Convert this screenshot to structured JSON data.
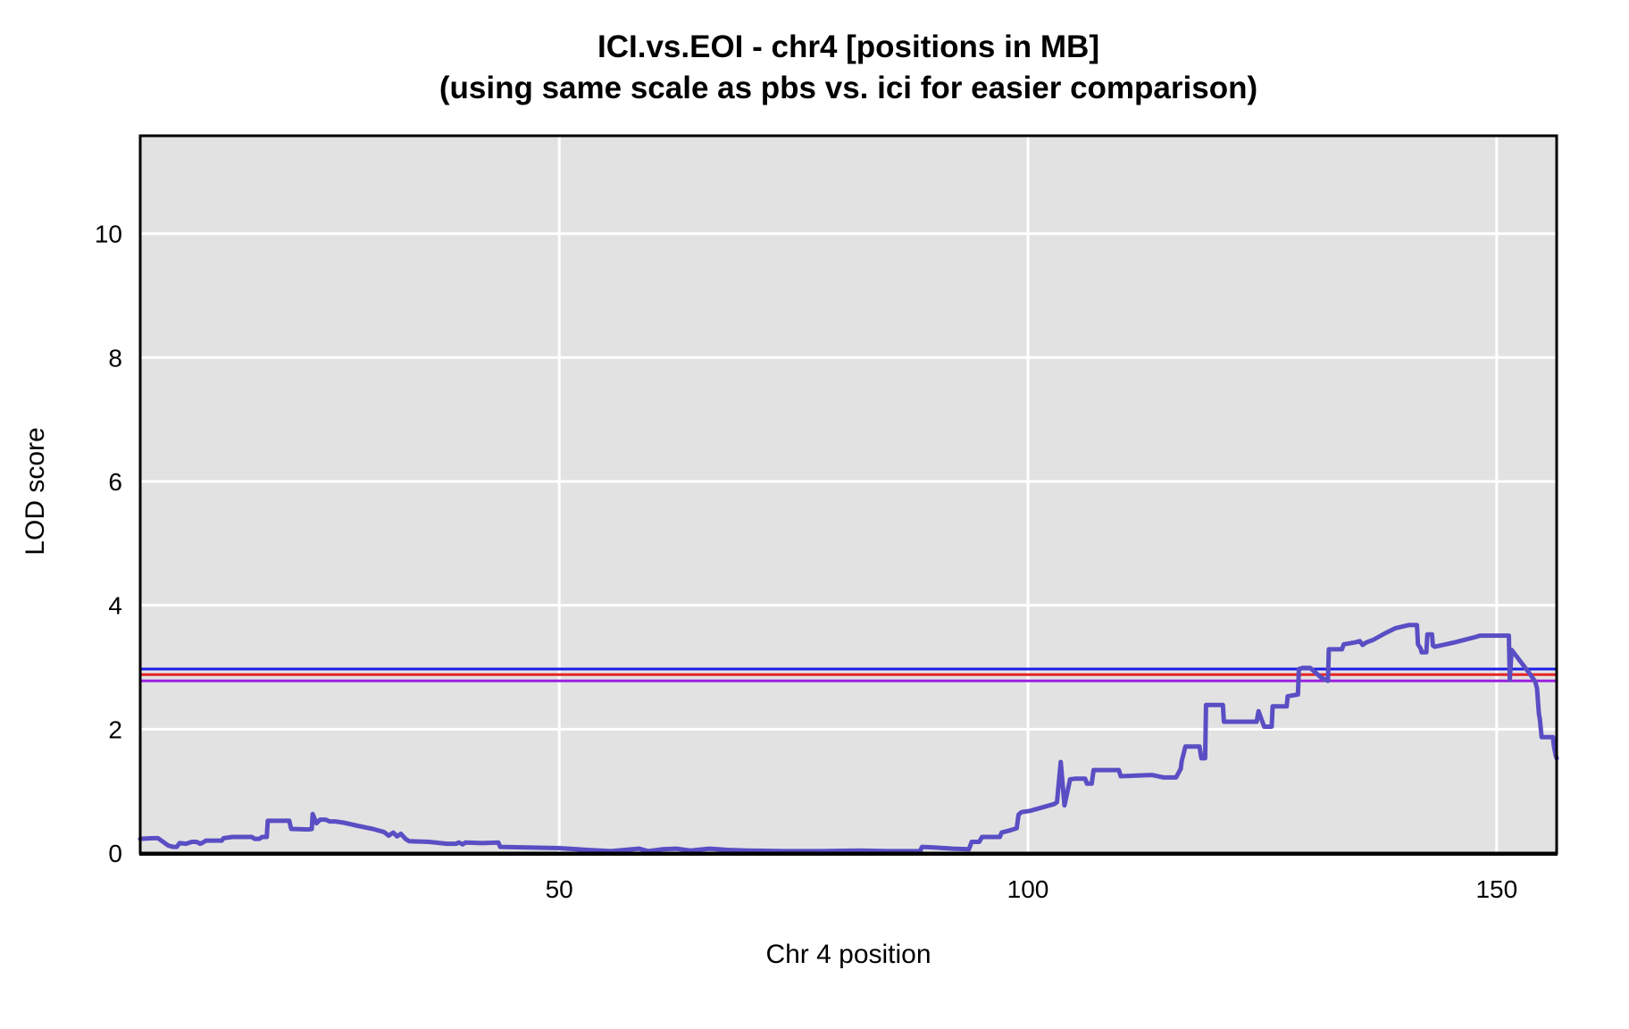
{
  "chart_data": {
    "type": "line",
    "title": "ICI.vs.EOI - chr4 [positions in MB]",
    "subtitle": "(using same scale as pbs vs. ici for easier comparison)",
    "xlabel": "Chr 4 position",
    "ylabel": "LOD score",
    "xlim": [
      5.3,
      156.4
    ],
    "ylim": [
      0,
      11.58
    ],
    "xticks": [
      50,
      100,
      150
    ],
    "yticks": [
      0,
      2,
      4,
      6,
      8,
      10
    ],
    "grid": true,
    "legend_position": "none",
    "panel_bg": "#e2e2e2",
    "grid_color": "#ffffff",
    "border_color": "#000000",
    "text_color": "#000000",
    "thresholds": [
      {
        "name": "blue-threshold",
        "value": 2.97,
        "color": "#1c1ce6"
      },
      {
        "name": "red-threshold",
        "value": 2.88,
        "color": "#e62424"
      },
      {
        "name": "purple-threshold",
        "value": 2.78,
        "color": "#9a22dd"
      }
    ],
    "series": [
      {
        "name": "LOD",
        "color": "#5a4ec4",
        "points": [
          [
            5.3,
            0.23
          ],
          [
            6.6,
            0.24
          ],
          [
            7.2,
            0.24
          ],
          [
            8.3,
            0.12
          ],
          [
            8.8,
            0.1
          ],
          [
            9.2,
            0.1
          ],
          [
            9.5,
            0.16
          ],
          [
            10.2,
            0.15
          ],
          [
            10.8,
            0.18
          ],
          [
            11.3,
            0.18
          ],
          [
            11.7,
            0.15
          ],
          [
            12.0,
            0.17
          ],
          [
            12.3,
            0.2
          ],
          [
            14.0,
            0.2
          ],
          [
            14.2,
            0.24
          ],
          [
            15.1,
            0.26
          ],
          [
            17.2,
            0.26
          ],
          [
            17.5,
            0.23
          ],
          [
            18.0,
            0.23
          ],
          [
            18.3,
            0.26
          ],
          [
            18.8,
            0.26
          ],
          [
            18.9,
            0.52
          ],
          [
            21.2,
            0.52
          ],
          [
            21.4,
            0.39
          ],
          [
            23.3,
            0.38
          ],
          [
            23.6,
            0.39
          ],
          [
            23.7,
            0.63
          ],
          [
            24.1,
            0.48
          ],
          [
            24.5,
            0.54
          ],
          [
            25.1,
            0.54
          ],
          [
            25.5,
            0.51
          ],
          [
            26.1,
            0.51
          ],
          [
            27.0,
            0.49
          ],
          [
            28.5,
            0.44
          ],
          [
            30.1,
            0.39
          ],
          [
            31.3,
            0.34
          ],
          [
            31.8,
            0.28
          ],
          [
            32.3,
            0.33
          ],
          [
            32.7,
            0.27
          ],
          [
            33.1,
            0.31
          ],
          [
            33.6,
            0.23
          ],
          [
            34.0,
            0.19
          ],
          [
            36.1,
            0.18
          ],
          [
            38.0,
            0.15
          ],
          [
            39.0,
            0.15
          ],
          [
            39.3,
            0.17
          ],
          [
            39.7,
            0.14
          ],
          [
            40.0,
            0.17
          ],
          [
            41.8,
            0.16
          ],
          [
            43.5,
            0.17
          ],
          [
            43.7,
            0.1
          ],
          [
            46.5,
            0.09
          ],
          [
            50.0,
            0.08
          ],
          [
            53.0,
            0.05
          ],
          [
            55.5,
            0.03
          ],
          [
            57.0,
            0.05
          ],
          [
            58.5,
            0.07
          ],
          [
            59.5,
            0.03
          ],
          [
            61.0,
            0.06
          ],
          [
            62.5,
            0.07
          ],
          [
            64.0,
            0.04
          ],
          [
            66.0,
            0.07
          ],
          [
            68.0,
            0.05
          ],
          [
            70.0,
            0.04
          ],
          [
            74.0,
            0.03
          ],
          [
            78.0,
            0.03
          ],
          [
            82.0,
            0.04
          ],
          [
            85.0,
            0.03
          ],
          [
            88.5,
            0.03
          ],
          [
            88.7,
            0.1
          ],
          [
            90.0,
            0.09
          ],
          [
            92.0,
            0.07
          ],
          [
            93.7,
            0.06
          ],
          [
            94.0,
            0.18
          ],
          [
            94.8,
            0.18
          ],
          [
            95.1,
            0.26
          ],
          [
            97.0,
            0.26
          ],
          [
            97.2,
            0.33
          ],
          [
            98.2,
            0.37
          ],
          [
            98.8,
            0.4
          ],
          [
            99.0,
            0.62
          ],
          [
            99.3,
            0.66
          ],
          [
            100.2,
            0.68
          ],
          [
            102.8,
            0.79
          ],
          [
            103.1,
            0.82
          ],
          [
            103.5,
            1.47
          ],
          [
            103.9,
            0.77
          ],
          [
            104.5,
            1.19
          ],
          [
            105.0,
            1.2
          ],
          [
            106.1,
            1.2
          ],
          [
            106.3,
            1.12
          ],
          [
            106.8,
            1.12
          ],
          [
            107.0,
            1.34
          ],
          [
            109.7,
            1.34
          ],
          [
            109.9,
            1.24
          ],
          [
            113.2,
            1.26
          ],
          [
            114.5,
            1.22
          ],
          [
            115.8,
            1.22
          ],
          [
            116.3,
            1.36
          ],
          [
            116.4,
            1.48
          ],
          [
            116.8,
            1.72
          ],
          [
            118.3,
            1.72
          ],
          [
            118.5,
            1.53
          ],
          [
            118.9,
            1.53
          ],
          [
            119.0,
            2.39
          ],
          [
            120.8,
            2.39
          ],
          [
            120.9,
            2.12
          ],
          [
            124.4,
            2.12
          ],
          [
            124.6,
            2.29
          ],
          [
            125.2,
            2.04
          ],
          [
            126.0,
            2.04
          ],
          [
            126.1,
            2.37
          ],
          [
            127.6,
            2.37
          ],
          [
            127.7,
            2.53
          ],
          [
            128.8,
            2.56
          ],
          [
            128.9,
            2.97
          ],
          [
            129.3,
            2.99
          ],
          [
            130.1,
            2.99
          ],
          [
            130.4,
            2.95
          ],
          [
            131.3,
            2.83
          ],
          [
            132.0,
            2.78
          ],
          [
            132.1,
            3.29
          ],
          [
            133.5,
            3.29
          ],
          [
            133.7,
            3.37
          ],
          [
            134.9,
            3.4
          ],
          [
            135.4,
            3.42
          ],
          [
            135.7,
            3.36
          ],
          [
            136.1,
            3.4
          ],
          [
            136.8,
            3.44
          ],
          [
            138.0,
            3.54
          ],
          [
            139.2,
            3.63
          ],
          [
            140.6,
            3.68
          ],
          [
            141.5,
            3.68
          ],
          [
            141.6,
            3.37
          ],
          [
            141.9,
            3.3
          ],
          [
            142.0,
            3.24
          ],
          [
            142.5,
            3.24
          ],
          [
            142.6,
            3.53
          ],
          [
            143.1,
            3.53
          ],
          [
            143.2,
            3.35
          ],
          [
            143.4,
            3.33
          ],
          [
            145.5,
            3.4
          ],
          [
            147.8,
            3.49
          ],
          [
            148.2,
            3.51
          ],
          [
            151.3,
            3.51
          ],
          [
            151.4,
            2.8
          ],
          [
            151.6,
            3.28
          ],
          [
            153.5,
            2.9
          ],
          [
            154.1,
            2.77
          ],
          [
            154.3,
            2.66
          ],
          [
            154.5,
            2.25
          ],
          [
            154.6,
            2.17
          ],
          [
            154.8,
            1.87
          ],
          [
            156.0,
            1.87
          ],
          [
            156.1,
            1.73
          ],
          [
            156.3,
            1.57
          ],
          [
            156.4,
            1.53
          ]
        ]
      }
    ]
  }
}
